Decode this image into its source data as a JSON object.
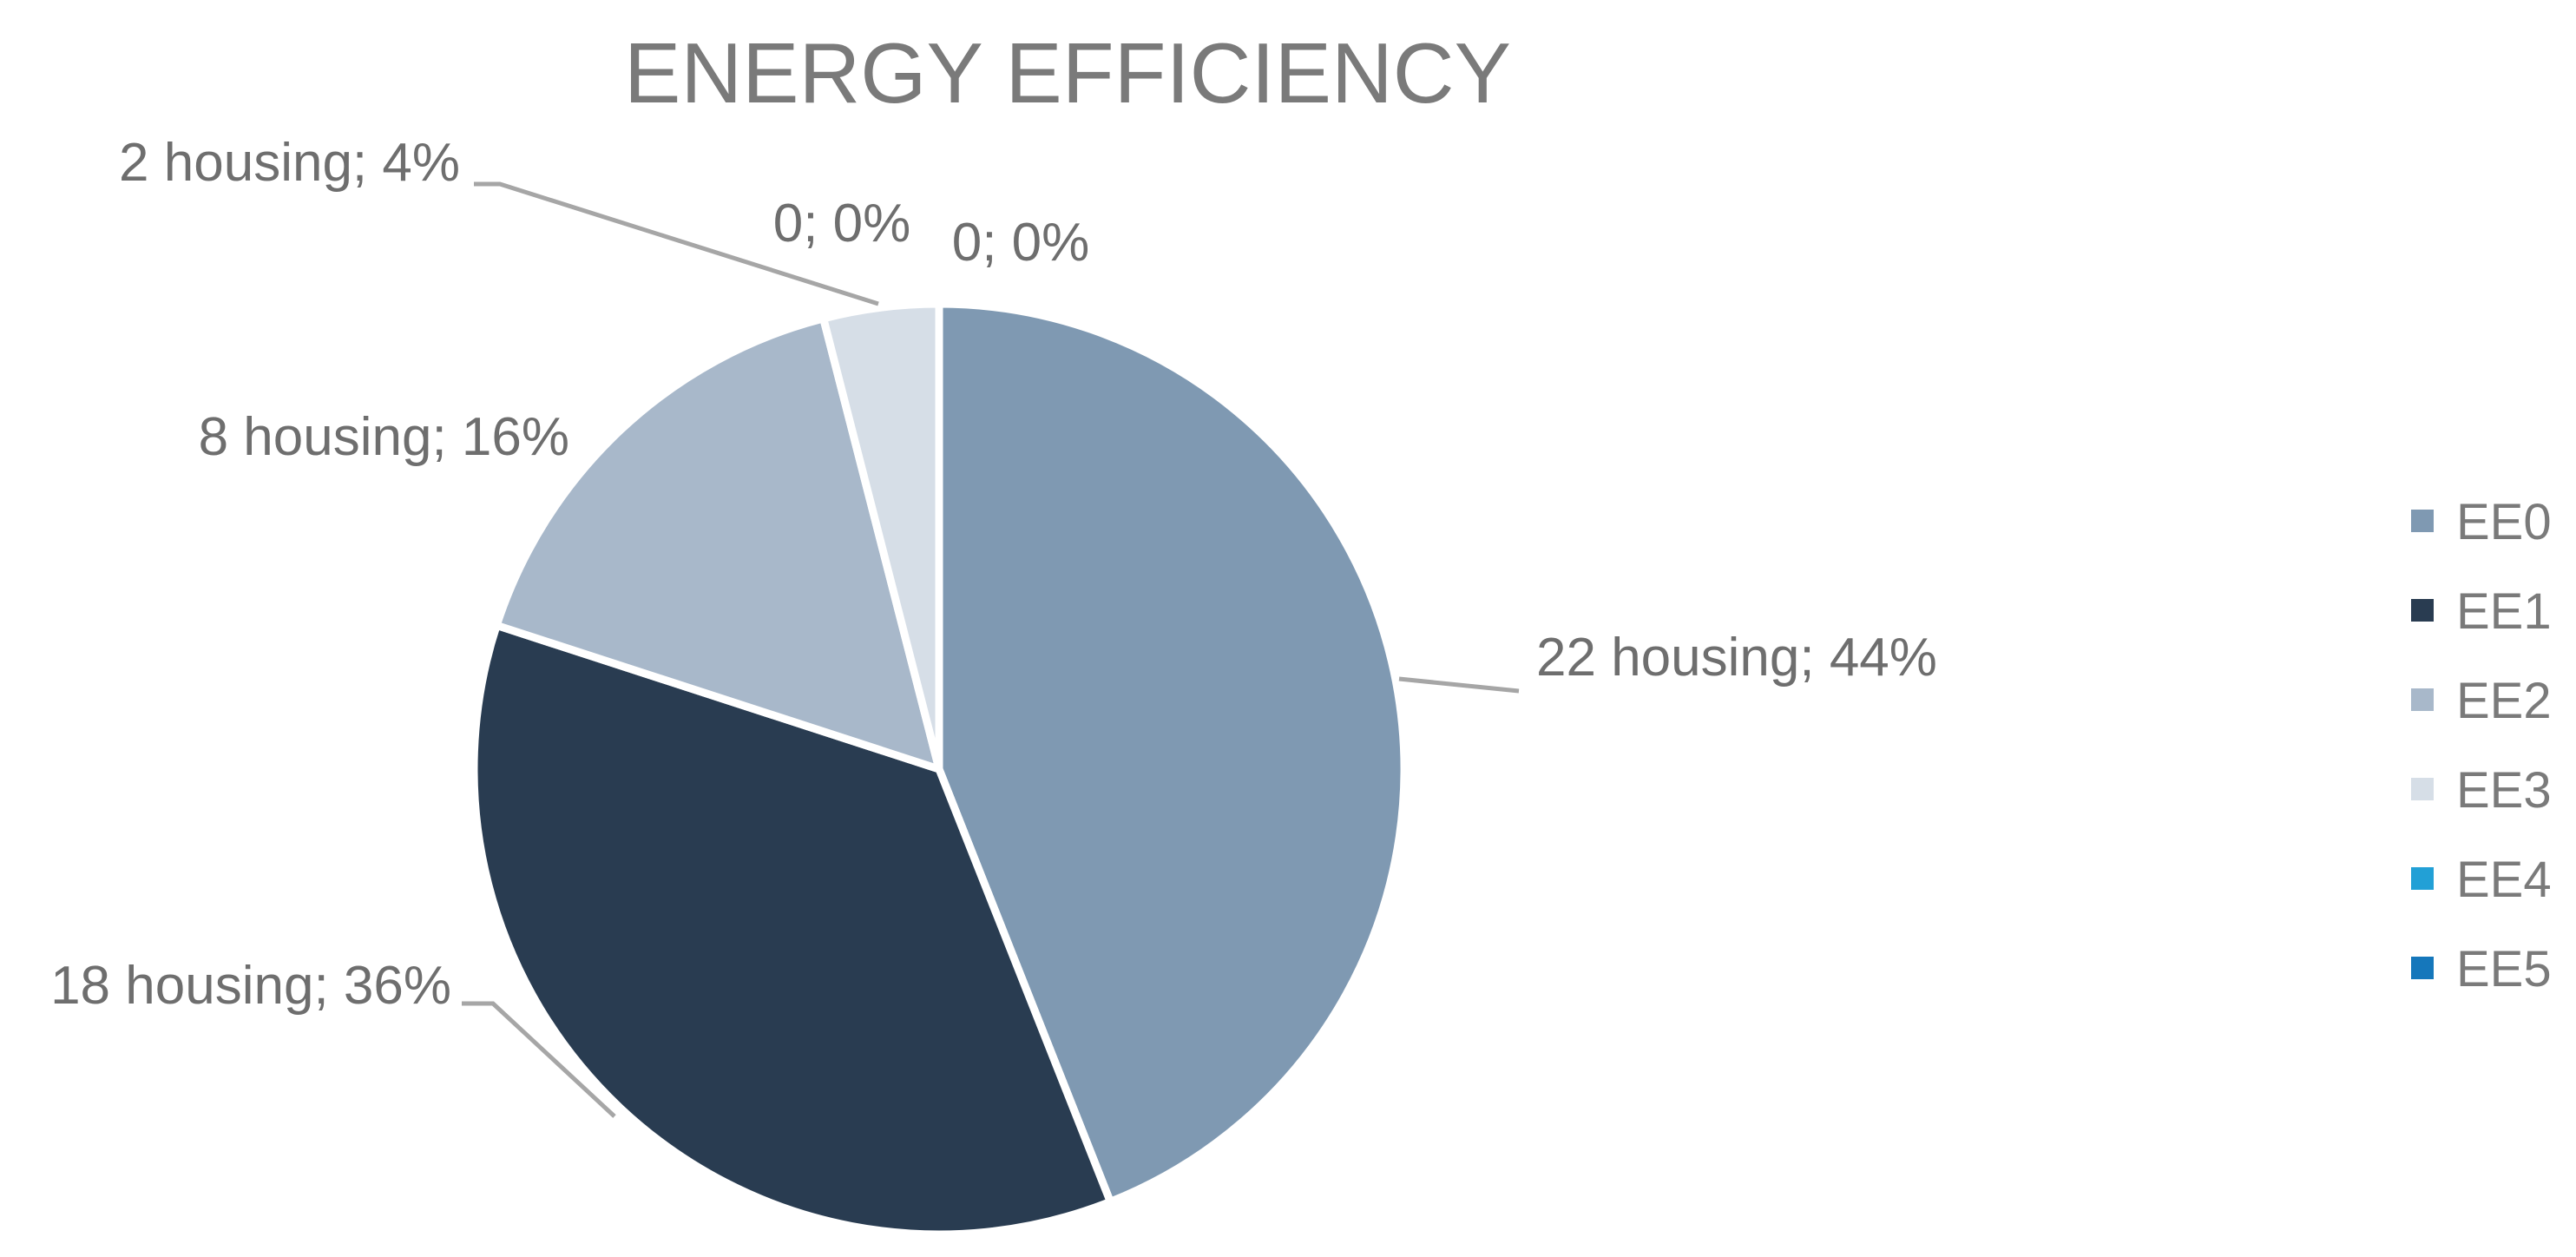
{
  "chart_data": {
    "type": "pie",
    "title": "ENERGY EFFICIENCY",
    "categories": [
      "EE0",
      "EE1",
      "EE2",
      "EE3",
      "EE4",
      "EE5"
    ],
    "values": [
      22,
      18,
      8,
      2,
      0,
      0
    ],
    "percentages": [
      "44%",
      "36%",
      "16%",
      "4%",
      "0%",
      "0%"
    ],
    "data_labels": [
      "22 housing; 44%",
      "18 housing; 36%",
      "8 housing; 16%",
      "2 housing; 4%",
      "0; 0%",
      "0; 0%"
    ],
    "colors": [
      "#7f99b2",
      "#293c51",
      "#a8b8ca",
      "#d6dee7",
      "#22a0d6",
      "#1577bb"
    ],
    "legend_position": "right",
    "start_angle": "12 o'clock, clockwise"
  }
}
